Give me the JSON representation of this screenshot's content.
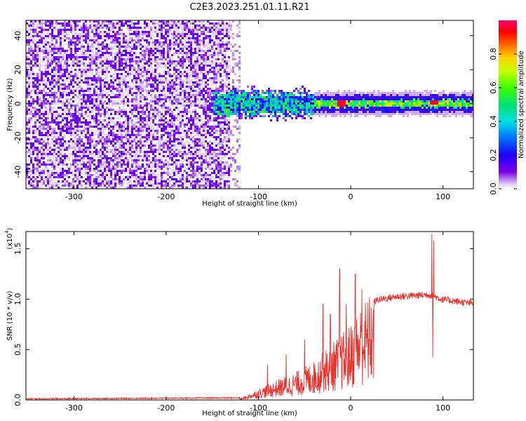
{
  "title": "C2E3.2023.251.01.11.R21",
  "colors": {
    "background": "#ffffff",
    "axis": "#000000",
    "snr_line": "#e8322d"
  },
  "chart_data": [
    {
      "type": "heatmap",
      "xlabel": "Height of straight line (km)",
      "ylabel": "Frequency (Hz)",
      "xlim": [
        -352,
        133
      ],
      "ylim": [
        -50,
        49
      ],
      "x_ticks": [
        -300,
        -200,
        -100,
        0,
        100
      ],
      "x_tick_labels": [
        "-300",
        "-200",
        "-100",
        "0",
        "100"
      ],
      "y_ticks": [
        -40,
        -20,
        0,
        20,
        40
      ],
      "y_tick_labels": [
        "-40",
        "-20",
        "0",
        "20",
        "40"
      ],
      "colorbar": {
        "label": "Normalized spectral amplitude",
        "range": [
          0,
          1
        ],
        "ticks": [
          0,
          0.2,
          0.4,
          0.6,
          0.8
        ],
        "tick_labels": [
          "0.0",
          "0.2",
          "0.4",
          "0.6",
          "0.8"
        ],
        "colormap": "rainbow (violet to red)"
      },
      "regions": [
        {
          "x_range": [
            -352,
            -130
          ],
          "freq_range": [
            -50,
            49
          ],
          "amplitude": [
            0.02,
            0.15
          ],
          "description": "broadband noise"
        },
        {
          "x_range": [
            -150,
            -40
          ],
          "freq_center": 0,
          "freq_halfwidth": [
            4,
            8
          ],
          "amplitude": [
            0.15,
            0.6
          ]
        },
        {
          "x_range": [
            -40,
            133
          ],
          "freq_center": 0,
          "freq_halfwidth": [
            1,
            3
          ],
          "amplitude": [
            0.4,
            0.95
          ]
        }
      ],
      "peaks": [
        {
          "x": -10,
          "freq": 0,
          "amplitude": 0.95
        },
        {
          "x": 90,
          "freq": 1,
          "amplitude": 0.95
        }
      ]
    },
    {
      "type": "line",
      "xlabel": "Height of straight line (km)",
      "ylabel": "SNR (10 * v/v)",
      "y_scale_label": "(x10",
      "y_scale_exponent": "4",
      "y_scale_suffix": ")",
      "xlim": [
        -352,
        133
      ],
      "ylim": [
        0,
        1.67
      ],
      "x_ticks": [
        -300,
        -200,
        -100,
        0,
        100
      ],
      "x_tick_labels": [
        "-300",
        "-200",
        "-100",
        "0",
        "100"
      ],
      "y_ticks": [
        0,
        0.5,
        1.0,
        1.5
      ],
      "y_tick_labels": [
        "0.0",
        "0.5",
        "1.0",
        "1.5"
      ],
      "series": [
        {
          "envelope": [
            {
              "x": -352,
              "y": 0.0
            },
            {
              "x": -120,
              "y": 0.01
            },
            {
              "x": -100,
              "y": 0.1
            },
            {
              "x": -80,
              "y": 0.18
            },
            {
              "x": -60,
              "y": 0.25
            },
            {
              "x": -40,
              "y": 0.35
            },
            {
              "x": -20,
              "y": 0.52
            },
            {
              "x": 0,
              "y": 0.68
            },
            {
              "x": 10,
              "y": 0.85
            },
            {
              "x": 20,
              "y": 0.95
            },
            {
              "x": 30,
              "y": 1.0
            },
            {
              "x": 50,
              "y": 1.03
            },
            {
              "x": 70,
              "y": 1.04
            },
            {
              "x": 85,
              "y": 1.05
            },
            {
              "x": 100,
              "y": 1.0
            },
            {
              "x": 133,
              "y": 0.96
            }
          ],
          "spikes": [
            {
              "x": -90,
              "y": 0.35
            },
            {
              "x": -70,
              "y": 0.45
            },
            {
              "x": -50,
              "y": 0.6
            },
            {
              "x": -30,
              "y": 0.95
            },
            {
              "x": -22,
              "y": 0.85
            },
            {
              "x": -12,
              "y": 1.3
            },
            {
              "x": -5,
              "y": 0.95
            },
            {
              "x": 5,
              "y": 1.25
            },
            {
              "x": 12,
              "y": 1.1
            },
            {
              "x": 88,
              "y": 1.65
            },
            {
              "x": 90,
              "y": 1.58
            },
            {
              "x": 89,
              "y": 0.42
            }
          ]
        }
      ]
    }
  ]
}
